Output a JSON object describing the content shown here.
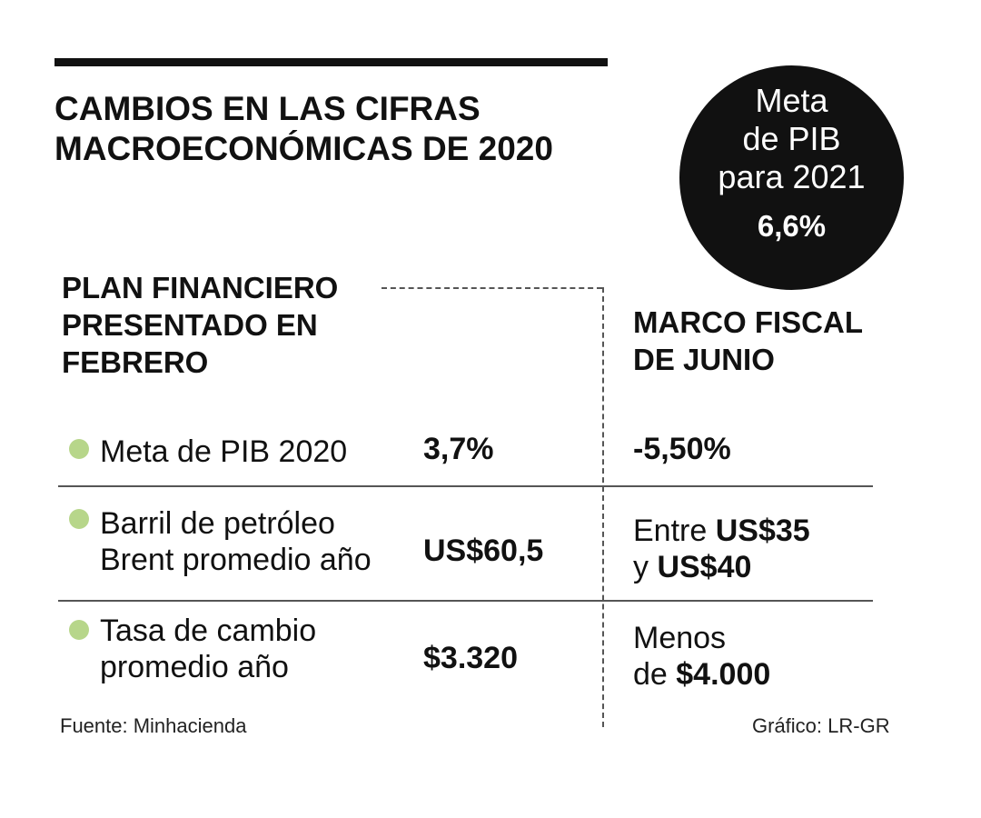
{
  "title_line1": "CAMBIOS EN LAS CIFRAS",
  "title_line2": "MACROECONÓMICAS DE 2020",
  "circle": {
    "line1": "Meta",
    "line2": "de PIB",
    "line3": "para 2021",
    "value": "6,6%"
  },
  "plan_header": [
    "PLAN FINANCIERO",
    "PRESENTADO EN",
    "FEBRERO"
  ],
  "marco_header": [
    "MARCO FISCAL",
    "DE JUNIO"
  ],
  "rows": [
    {
      "label": [
        "Meta de PIB 2020"
      ],
      "plan_value": "3,7%",
      "marco": {
        "bold_only": "-5,50%"
      }
    },
    {
      "label": [
        "Barril de petróleo",
        "Brent promedio año"
      ],
      "plan_value": "US$60,5",
      "marco": {
        "line1_prefix": "Entre ",
        "line1_bold": "US$35",
        "line2_prefix": "y ",
        "line2_bold": "US$40"
      }
    },
    {
      "label": [
        "Tasa de cambio",
        "promedio año"
      ],
      "plan_value": "$3.320",
      "marco": {
        "line1_prefix": "Menos",
        "line2_prefix": "de ",
        "line2_bold": "$4.000"
      }
    }
  ],
  "source": "Fuente: Minhacienda",
  "credit": "Gráfico: LR-GR",
  "colors": {
    "bullet": "#b7d68a",
    "ink": "#111111"
  }
}
